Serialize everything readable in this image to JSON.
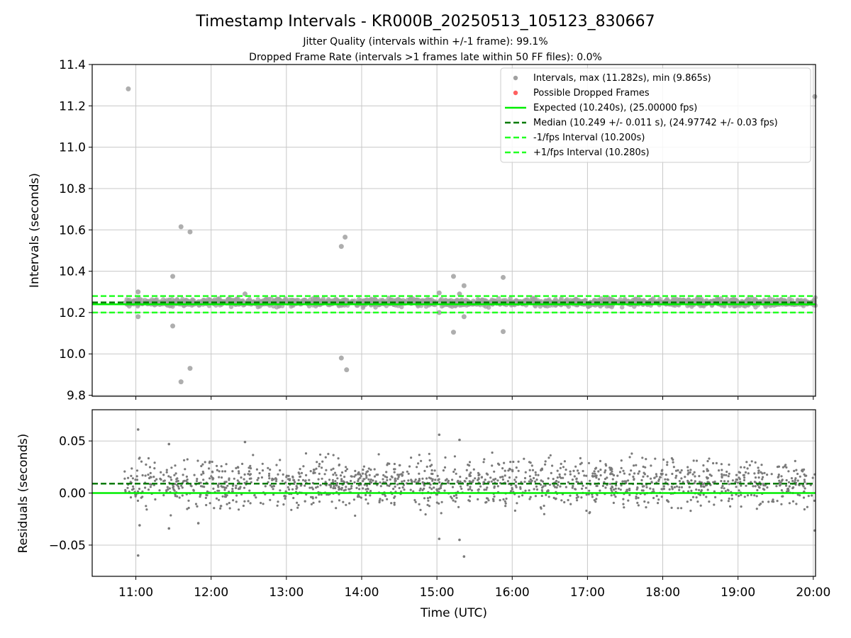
{
  "figure": {
    "title": "Timestamp Intervals - KR000B_20250513_105123_830667",
    "subtitle_line1": "Jitter Quality (intervals within +/-1 frame): 99.1%",
    "subtitle_line2": "Dropped Frame Rate (intervals >1 frames late within 50 FF files): 0.0%"
  },
  "colors": {
    "points": "#a0a0a0",
    "residual_points": "#7a7a7a",
    "dropped": "#ff6060",
    "expected": "#00ee00",
    "median": "#007a00",
    "interval_band": "#22ff22",
    "grid": "#c8c8c8"
  },
  "chart_data": [
    {
      "id": "intervals",
      "type": "scatter",
      "title": "",
      "xlabel": "",
      "ylabel": "Intervals (seconds)",
      "x_unit": "hours UTC",
      "xlim": [
        10.42,
        20.03
      ],
      "ylim": [
        9.795,
        11.4
      ],
      "yticks": [
        9.8,
        10.0,
        10.2,
        10.4,
        10.6,
        10.8,
        11.0,
        11.2,
        11.4
      ],
      "ytick_labels": [
        "9.8",
        "10.0",
        "10.2",
        "10.4",
        "10.6",
        "10.8",
        "11.0",
        "11.2",
        "11.4"
      ],
      "grid": true,
      "legend_position": "top-right",
      "cluster": {
        "x_start": 10.85,
        "x_end": 20.03,
        "center": 10.249,
        "spread": 0.014
      },
      "outliers": [
        {
          "x": 10.9,
          "y": 11.282
        },
        {
          "x": 11.03,
          "y": 10.3
        },
        {
          "x": 11.03,
          "y": 10.18
        },
        {
          "x": 11.49,
          "y": 10.375
        },
        {
          "x": 11.49,
          "y": 10.135
        },
        {
          "x": 11.6,
          "y": 10.615
        },
        {
          "x": 11.72,
          "y": 10.59
        },
        {
          "x": 11.6,
          "y": 9.865
        },
        {
          "x": 11.72,
          "y": 9.93
        },
        {
          "x": 12.45,
          "y": 10.29
        },
        {
          "x": 13.73,
          "y": 10.52
        },
        {
          "x": 13.78,
          "y": 10.565
        },
        {
          "x": 13.73,
          "y": 9.98
        },
        {
          "x": 13.8,
          "y": 9.923
        },
        {
          "x": 15.03,
          "y": 10.295
        },
        {
          "x": 15.03,
          "y": 10.2
        },
        {
          "x": 15.22,
          "y": 10.375
        },
        {
          "x": 15.22,
          "y": 10.105
        },
        {
          "x": 15.3,
          "y": 10.29
        },
        {
          "x": 15.36,
          "y": 10.33
        },
        {
          "x": 15.36,
          "y": 10.18
        },
        {
          "x": 15.88,
          "y": 10.37
        },
        {
          "x": 15.88,
          "y": 10.108
        },
        {
          "x": 20.02,
          "y": 11.245
        }
      ],
      "series": [
        {
          "name": "Intervals, max (11.282s), min (9.865s)",
          "kind": "points"
        },
        {
          "name": "Possible Dropped Frames",
          "kind": "points",
          "values": []
        },
        {
          "name": "Expected (10.240s), (25.00000 fps)",
          "kind": "hline",
          "y": 10.24
        },
        {
          "name": "Median (10.249 +/- 0.011 s), (24.97742 +/- 0.03 fps)",
          "kind": "hline",
          "y": 10.249
        },
        {
          "name": "-1/fps Interval (10.200s)",
          "kind": "hline",
          "y": 10.2
        },
        {
          "name": "+1/fps Interval (10.280s)",
          "kind": "hline",
          "y": 10.28
        }
      ]
    },
    {
      "id": "residuals",
      "type": "scatter",
      "title": "",
      "xlabel": "Time (UTC)",
      "ylabel": "Residuals (seconds)",
      "x_unit": "hours UTC",
      "xlim": [
        10.42,
        20.03
      ],
      "ylim": [
        -0.08,
        0.08
      ],
      "yticks": [
        -0.05,
        0.0,
        0.05
      ],
      "ytick_labels": [
        "−0.05",
        "0.00",
        "0.05"
      ],
      "xticks": [
        11,
        12,
        13,
        14,
        15,
        16,
        17,
        18,
        19,
        20
      ],
      "xtick_labels": [
        "11:00",
        "12:00",
        "13:00",
        "14:00",
        "15:00",
        "16:00",
        "17:00",
        "18:00",
        "19:00",
        "20:00"
      ],
      "grid": true,
      "cluster": {
        "x_start": 10.85,
        "x_end": 20.03,
        "center": 0.009,
        "spread": 0.012
      },
      "outliers": [
        {
          "x": 11.03,
          "y": 0.061
        },
        {
          "x": 11.03,
          "y": -0.06
        },
        {
          "x": 11.05,
          "y": -0.031
        },
        {
          "x": 11.44,
          "y": 0.047
        },
        {
          "x": 11.44,
          "y": -0.034
        },
        {
          "x": 11.83,
          "y": -0.029
        },
        {
          "x": 12.45,
          "y": 0.049
        },
        {
          "x": 15.03,
          "y": 0.056
        },
        {
          "x": 15.03,
          "y": -0.044
        },
        {
          "x": 15.3,
          "y": 0.051
        },
        {
          "x": 15.3,
          "y": -0.045
        },
        {
          "x": 15.36,
          "y": -0.061
        },
        {
          "x": 20.02,
          "y": -0.036
        }
      ],
      "lines": [
        {
          "kind": "hline",
          "y": 0.0,
          "role": "expected"
        },
        {
          "kind": "hline",
          "y": 0.009,
          "role": "median"
        }
      ]
    }
  ]
}
